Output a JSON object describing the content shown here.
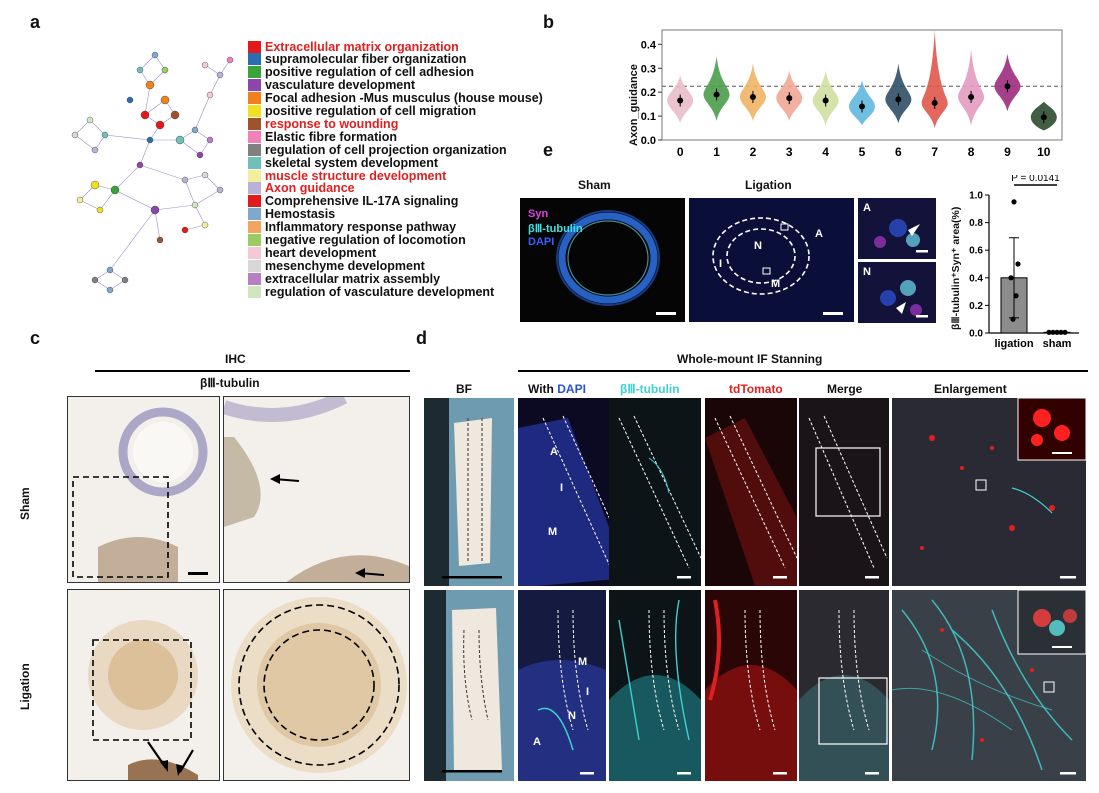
{
  "panels": {
    "a": "a",
    "b": "b",
    "c": "c",
    "d": "d",
    "e": "e"
  },
  "legend": [
    {
      "label": "Extracellular matrix organization",
      "color": "#e31a1c",
      "highlight": true
    },
    {
      "label": "supramolecular fiber organization",
      "color": "#2a6db0",
      "highlight": false
    },
    {
      "label": "positive regulation of cell adhesion",
      "color": "#3aa33a",
      "highlight": false
    },
    {
      "label": "vasculature development",
      "color": "#8a46a8",
      "highlight": false
    },
    {
      "label": "Focal adhesion -Mus musculus (house mouse)",
      "color": "#f07f1c",
      "highlight": false
    },
    {
      "label": "positive regulation of cell migration",
      "color": "#f0e021",
      "highlight": false
    },
    {
      "label": "response to wounding",
      "color": "#a0522d",
      "highlight": true
    },
    {
      "label": "Elastic fibre formation",
      "color": "#f080b8",
      "highlight": false
    },
    {
      "label": "regulation of cell projection organization",
      "color": "#808080",
      "highlight": false
    },
    {
      "label": "skeletal system development",
      "color": "#6fc0b8",
      "highlight": false
    },
    {
      "label": "muscle structure development",
      "color": "#f2ef9c",
      "highlight": true
    },
    {
      "label": "Axon guidance",
      "color": "#b9b2d8",
      "highlight": true
    },
    {
      "label": "Comprehensive IL-17A signaling",
      "color": "#e31a1c",
      "highlight": false
    },
    {
      "label": "Hemostasis",
      "color": "#7fa8cf",
      "highlight": false
    },
    {
      "label": "Inflammatory response pathway",
      "color": "#f2a55c",
      "highlight": false
    },
    {
      "label": "negative regulation of locomotion",
      "color": "#9bcc63",
      "highlight": false
    },
    {
      "label": "heart development",
      "color": "#f6c7d4",
      "highlight": false
    },
    {
      "label": "mesenchyme development",
      "color": "#d8d8d8",
      "highlight": false
    },
    {
      "label": "extracellular matrix assembly",
      "color": "#b77fc1",
      "highlight": false
    },
    {
      "label": "regulation of vasculature development",
      "color": "#cfe6bf",
      "highlight": false
    }
  ],
  "chart_data": [
    {
      "type": "violin",
      "panel": "b",
      "ylabel": "Axon_guidance",
      "categories": [
        "0",
        "1",
        "2",
        "3",
        "4",
        "5",
        "6",
        "7",
        "8",
        "9",
        "10"
      ],
      "medians": [
        0.165,
        0.19,
        0.18,
        0.175,
        0.165,
        0.14,
        0.17,
        0.155,
        0.18,
        0.225,
        0.095
      ],
      "ranges": [
        [
          0.07,
          0.27
        ],
        [
          0.08,
          0.35
        ],
        [
          0.08,
          0.32
        ],
        [
          0.08,
          0.29
        ],
        [
          0.06,
          0.29
        ],
        [
          0.06,
          0.25
        ],
        [
          0.07,
          0.32
        ],
        [
          0.05,
          0.46
        ],
        [
          0.06,
          0.38
        ],
        [
          0.12,
          0.36
        ],
        [
          0.04,
          0.16
        ]
      ],
      "colors": [
        "#e8bcc9",
        "#4b9d4b",
        "#f0b266",
        "#f0a796",
        "#cfe0a0",
        "#5fb8e0",
        "#2f4f66",
        "#e0564a",
        "#e39ac0",
        "#9c2b7d",
        "#2e4d2e"
      ],
      "reference_line": 0.225,
      "ylim": [
        0,
        0.46
      ],
      "yticks": [
        "0.0",
        "0.1",
        "0.2",
        "0.3",
        "0.4"
      ]
    },
    {
      "type": "bar",
      "panel": "e",
      "ylabel": "βⅢ-tubulin⁺Syn⁺ area(%)",
      "categories": [
        "ligation",
        "sham"
      ],
      "values": [
        0.4,
        0.005
      ],
      "error": [
        [
          0.11,
          0.69
        ],
        [
          0.0,
          0.01
        ]
      ],
      "points": [
        [
          0.95,
          0.5,
          0.4,
          0.27,
          0.1
        ],
        [
          0.005,
          0.005,
          0.005,
          0.005,
          0.005
        ]
      ],
      "pvalue": "P = 0.0141",
      "ylim": [
        0,
        1.0
      ],
      "yticks": [
        "0.0",
        "0.2",
        "0.4",
        "0.6",
        "0.8",
        "1.0"
      ]
    }
  ],
  "panel_c": {
    "title": "IHC",
    "subtitle": "βⅢ-tubulin",
    "rows": [
      "Sham",
      "Ligation"
    ]
  },
  "panel_d": {
    "title": "Whole-mount IF Stanning",
    "columns": [
      "BF",
      "With",
      "DAPI",
      "βⅢ-tubulin",
      "tdTomato",
      "Merge",
      "Enlargement"
    ],
    "labels_top": [
      "A",
      "I",
      "M"
    ],
    "labels_bottom": [
      "M",
      "I",
      "N",
      "A"
    ]
  },
  "panel_e": {
    "sham_label": "Sham",
    "ligation_label": "Ligation",
    "stain_syn": "Syn",
    "stain_tubulin": "βⅢ-tubulin",
    "stain_dapi": "DAPI",
    "region_labels": [
      "N",
      "A",
      "I",
      "M"
    ],
    "inset_labels": [
      "A",
      "N"
    ]
  }
}
